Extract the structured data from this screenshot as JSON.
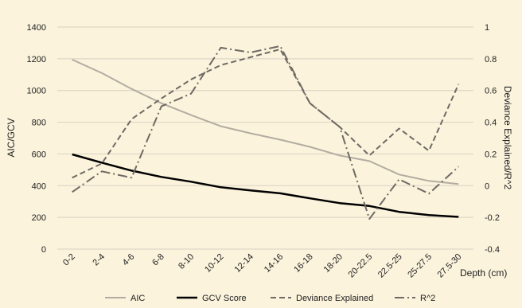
{
  "chart_data": {
    "type": "line",
    "title": "",
    "xlabel": "Depth (cm)",
    "ylabel": "AIC/GCV",
    "y2label": "Deviance Explained/R^2",
    "categories": [
      "0-2",
      "2-4",
      "4-6",
      "6-8",
      "8-10",
      "10-12",
      "12-14",
      "14-16",
      "16-18",
      "18-20",
      "20-22.5",
      "22.5-25",
      "25-27.5",
      "27.5-30"
    ],
    "ylim": [
      0,
      1400
    ],
    "yticks": [
      "0",
      "200",
      "400",
      "600",
      "800",
      "1000",
      "1200",
      "1400"
    ],
    "y2lim": [
      -0.4,
      1
    ],
    "y2ticks": [
      "-0.4",
      "-0.2",
      "0",
      "0.2",
      "0.4",
      "0.6",
      "0.8",
      "1"
    ],
    "grid": true,
    "legend_position": "bottom",
    "series": [
      {
        "name": "AIC",
        "axis": "left",
        "style": "solid",
        "color": "#b3ada1",
        "width": 2,
        "values": [
          1195,
          1110,
          1010,
          920,
          845,
          775,
          730,
          690,
          645,
          590,
          555,
          470,
          430,
          410
        ]
      },
      {
        "name": "GCV Score",
        "axis": "left",
        "style": "solid",
        "color": "#000000",
        "width": 2.5,
        "values": [
          597,
          545,
          495,
          455,
          425,
          390,
          370,
          352,
          320,
          290,
          272,
          235,
          215,
          203
        ]
      },
      {
        "name": "Deviance Explained",
        "axis": "right",
        "style": "dash",
        "color": "#6f6a64",
        "width": 2,
        "values": [
          0.05,
          0.14,
          0.42,
          0.55,
          0.67,
          0.76,
          0.81,
          0.86,
          0.52,
          0.37,
          0.19,
          0.36,
          0.22,
          0.64
        ]
      },
      {
        "name": "R^2",
        "axis": "right",
        "style": "dashdot",
        "color": "#6f6a64",
        "width": 2,
        "values": [
          -0.04,
          0.09,
          0.05,
          0.5,
          0.58,
          0.87,
          0.84,
          0.88,
          0.52,
          0.37,
          -0.21,
          0.04,
          -0.05,
          0.12
        ]
      }
    ]
  },
  "colors": {
    "background": "#fbf3dc",
    "grid": "#d9d2c2"
  }
}
